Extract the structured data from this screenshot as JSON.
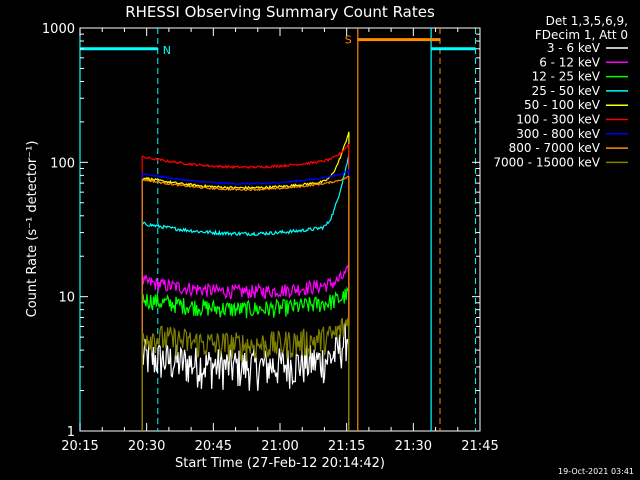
{
  "chart_data": {
    "type": "line",
    "title": "RHESSI Observing Summary Count Rates",
    "xlabel": "Start Time (27-Feb-12 20:14:42)",
    "ylabel": "Count Rate (s⁻¹ detector⁻¹)",
    "yscale": "log",
    "ylim": [
      1,
      1000
    ],
    "xlim_minutes_after_2015": [
      0,
      90
    ],
    "x_ticks": [
      "20:15",
      "20:30",
      "20:45",
      "21:00",
      "21:15",
      "21:30",
      "21:45"
    ],
    "y_ticks": [
      "1",
      "10",
      "100",
      "1000"
    ],
    "legend_header": [
      "Det 1,3,5,6,9,",
      "FDecim 1, Att 0"
    ],
    "legend_position": "top-right",
    "timestamp": "19-Oct-2021 03:41",
    "series": [
      {
        "name": "3 - 6 keV",
        "color": "#ffffff",
        "level": 3.2,
        "noise": 0.35,
        "tail": 1.5
      },
      {
        "name": "6 - 12 keV",
        "color": "#ff00ff",
        "level": 11.5,
        "noise": 0.12,
        "tail": 1.2
      },
      {
        "name": "12 - 25 keV",
        "color": "#00ff00",
        "level": 8.5,
        "noise": 0.15,
        "tail": 1.1
      },
      {
        "name": "25 - 50 keV",
        "color": "#00ffff",
        "level": 31,
        "noise": 0.03,
        "tail": 3.2
      },
      {
        "name": "50 - 100 keV",
        "color": "#ffff00",
        "level": 68,
        "noise": 0.02,
        "tail": 2.2
      },
      {
        "name": "100 - 300 keV",
        "color": "#ff0000",
        "level": 97,
        "noise": 0.02,
        "tail": 1.25
      },
      {
        "name": "300 - 800 keV",
        "color": "#0000ff",
        "level": 73,
        "noise": 0.015,
        "tail": 1.05
      },
      {
        "name": "800 - 7000 keV",
        "color": "#ff8c00",
        "level": 66,
        "noise": 0.015,
        "tail": 1.05
      },
      {
        "name": "7000 - 15000 keV",
        "color": "#808000",
        "level": 4.6,
        "noise": 0.25,
        "tail": 1.3
      }
    ],
    "data_start_minutes": 14,
    "data_end_minutes": 60.5,
    "markers": {
      "night_label": "N",
      "saa_label": "S",
      "night_intervals_minutes": [
        [
          0,
          17.5
        ],
        [
          79,
          89
        ]
      ],
      "saa_interval_minutes": [
        62.5,
        81
      ],
      "night_color": "#00ffff",
      "saa_color": "#ff8c00"
    }
  }
}
